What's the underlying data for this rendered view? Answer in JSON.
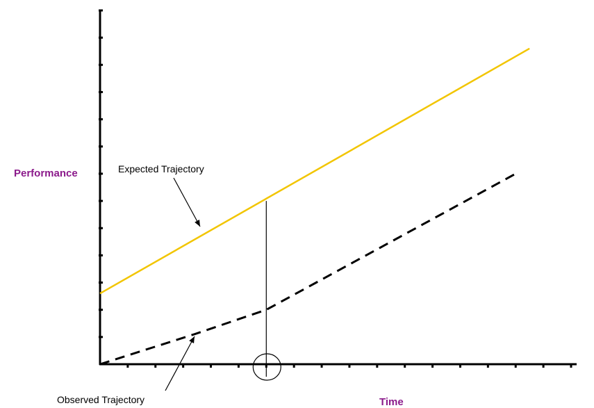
{
  "chart_data": {
    "type": "line",
    "xlabel": "Time",
    "ylabel": "Performance",
    "xlim": [
      0,
      17
    ],
    "ylim": [
      0,
      13
    ],
    "x_ticks": 17,
    "y_ticks": 13,
    "grid": false,
    "legend": "none",
    "series": [
      {
        "style": "solid",
        "color": "#f2c500",
        "x": [
          0,
          15.5
        ],
        "y": [
          2.6,
          11.6
        ]
      },
      {
        "style": "dashed",
        "color": "#000000",
        "x": [
          0,
          3.4,
          6,
          15
        ],
        "y": [
          0,
          1.1,
          2,
          7
        ]
      }
    ],
    "annotations": {
      "expected_label": "Expected Trajectory",
      "observed_label": "Observed Trajectory",
      "gap_marker_x": 6,
      "gap_top_y": 6.0,
      "gap_bottom_y": 2.0
    },
    "colors": {
      "axis_title": "#8b1a8b",
      "axis": "#000000"
    }
  }
}
